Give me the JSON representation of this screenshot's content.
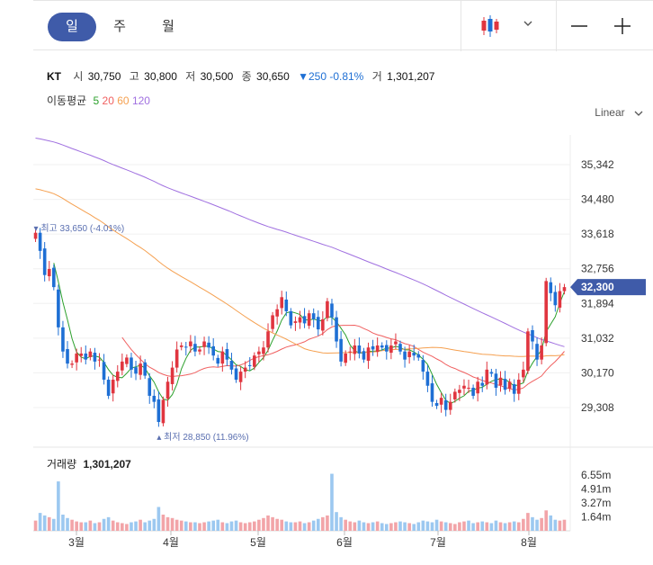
{
  "tabs": [
    {
      "label": "일",
      "active": true
    },
    {
      "label": "주",
      "active": false
    },
    {
      "label": "월",
      "active": false
    }
  ],
  "toolbar": {
    "chart_type_icon": "candlestick-icon",
    "dropdown_icon": "chevron-down-icon",
    "zoom_out_icon": "minus-icon",
    "zoom_in_icon": "plus-icon"
  },
  "info": {
    "ticker": "KT",
    "open_label": "시",
    "open": "30,750",
    "high_label": "고",
    "high": "30,800",
    "low_label": "저",
    "low": "30,500",
    "close_label": "종",
    "close": "30,650",
    "change": "▼250 -0.81%",
    "volume_label": "거",
    "volume": "1,301,207"
  },
  "ma": {
    "label": "이동평균",
    "p5": "5",
    "p20": "20",
    "p60": "60",
    "p120": "120",
    "colors": {
      "p5": "#2ca02c",
      "p20": "#f06060",
      "p60": "#f5a050",
      "p120": "#a070e0"
    }
  },
  "scale_label": "Linear",
  "colors": {
    "up": "#e0353f",
    "down": "#1e6fd4",
    "price_tag": "#3f5ba9",
    "vol_up": "#f2a4a8",
    "vol_down": "#9cc8f0"
  },
  "chart_data": {
    "type": "candlestick",
    "x_ticks": [
      "3월",
      "4월",
      "5월",
      "6월",
      "7월",
      "8월"
    ],
    "y_ticks": [
      "35,342",
      "34,480",
      "33,618",
      "32,756",
      "31,894",
      "31,032",
      "30,170",
      "29,308"
    ],
    "y_tick_values": [
      35342,
      34480,
      33618,
      32756,
      31894,
      31032,
      30170,
      29308
    ],
    "current_price": "32,300",
    "current_value": 32300,
    "max_annotation": "최고 33,650 (-4.01%)",
    "min_annotation": "최저 28,850 (11.96%)",
    "ma_periods": [
      5,
      20,
      60,
      120
    ],
    "volume_title": "거래량",
    "volume_value": "1,301,207",
    "volume_ticks": [
      "6.55m",
      "4.91m",
      "3.27m",
      "1.64m"
    ],
    "volume_tick_values": [
      6.55,
      4.91,
      3.27,
      1.64
    ],
    "closes": [
      33650,
      33200,
      32600,
      32750,
      32300,
      31300,
      30700,
      30400,
      30400,
      30650,
      30650,
      30500,
      30700,
      30450,
      30500,
      30000,
      29600,
      30000,
      30200,
      30450,
      30550,
      30250,
      30150,
      30400,
      30100,
      29600,
      29450,
      28950,
      29500,
      29950,
      30300,
      30750,
      30850,
      30800,
      30950,
      30700,
      30750,
      30950,
      30800,
      30600,
      30400,
      30700,
      30500,
      30250,
      30000,
      30200,
      30300,
      30350,
      30600,
      30700,
      30800,
      31200,
      31600,
      31750,
      32050,
      31700,
      31350,
      31450,
      31550,
      31400,
      31650,
      31500,
      31250,
      31500,
      31950,
      31550,
      30950,
      30450,
      30650,
      30700,
      30850,
      30650,
      30500,
      30800,
      30750,
      30850,
      30800,
      30700,
      30850,
      30950,
      30700,
      30500,
      30700,
      30600,
      30550,
      30200,
      29850,
      29450,
      29350,
      29550,
      29250,
      29450,
      29700,
      29750,
      29850,
      29800,
      29600,
      29950,
      29850,
      30250,
      30150,
      29800,
      30050,
      29750,
      29950,
      29650,
      30000,
      30250,
      31200,
      30950,
      30500,
      30850,
      32450,
      32150,
      31850,
      32200,
      32300
    ],
    "volumes": [
      1.2,
      2.1,
      1.8,
      1.6,
      1.4,
      5.8,
      1.9,
      1.5,
      1.3,
      1.1,
      1.0,
      1.0,
      1.2,
      0.9,
      1.0,
      1.4,
      1.6,
      1.2,
      1.0,
      0.9,
      0.8,
      1.0,
      1.1,
      1.3,
      1.0,
      1.2,
      1.4,
      2.8,
      1.9,
      1.6,
      1.5,
      1.3,
      1.2,
      1.1,
      1.0,
      1.0,
      0.9,
      1.0,
      1.1,
      1.2,
      1.3,
      1.0,
      0.9,
      1.1,
      1.2,
      1.0,
      0.9,
      1.0,
      1.1,
      1.3,
      1.5,
      1.8,
      1.6,
      1.4,
      1.3,
      1.1,
      1.0,
      1.0,
      1.1,
      0.9,
      1.0,
      1.2,
      1.4,
      1.6,
      1.8,
      6.7,
      2.2,
      1.6,
      1.3,
      1.1,
      1.0,
      1.2,
      1.0,
      0.9,
      1.0,
      1.1,
      0.9,
      0.8,
      0.9,
      1.0,
      1.1,
      1.0,
      0.9,
      0.8,
      1.0,
      1.2,
      1.1,
      1.0,
      1.3,
      1.1,
      1.0,
      0.9,
      0.8,
      1.0,
      1.1,
      1.2,
      0.9,
      1.0,
      1.1,
      1.0,
      0.9,
      1.2,
      1.0,
      0.9,
      1.0,
      1.1,
      1.0,
      1.4,
      2.1,
      1.6,
      1.3,
      1.5,
      2.4,
      1.8,
      1.3,
      1.2,
      1.3
    ]
  }
}
